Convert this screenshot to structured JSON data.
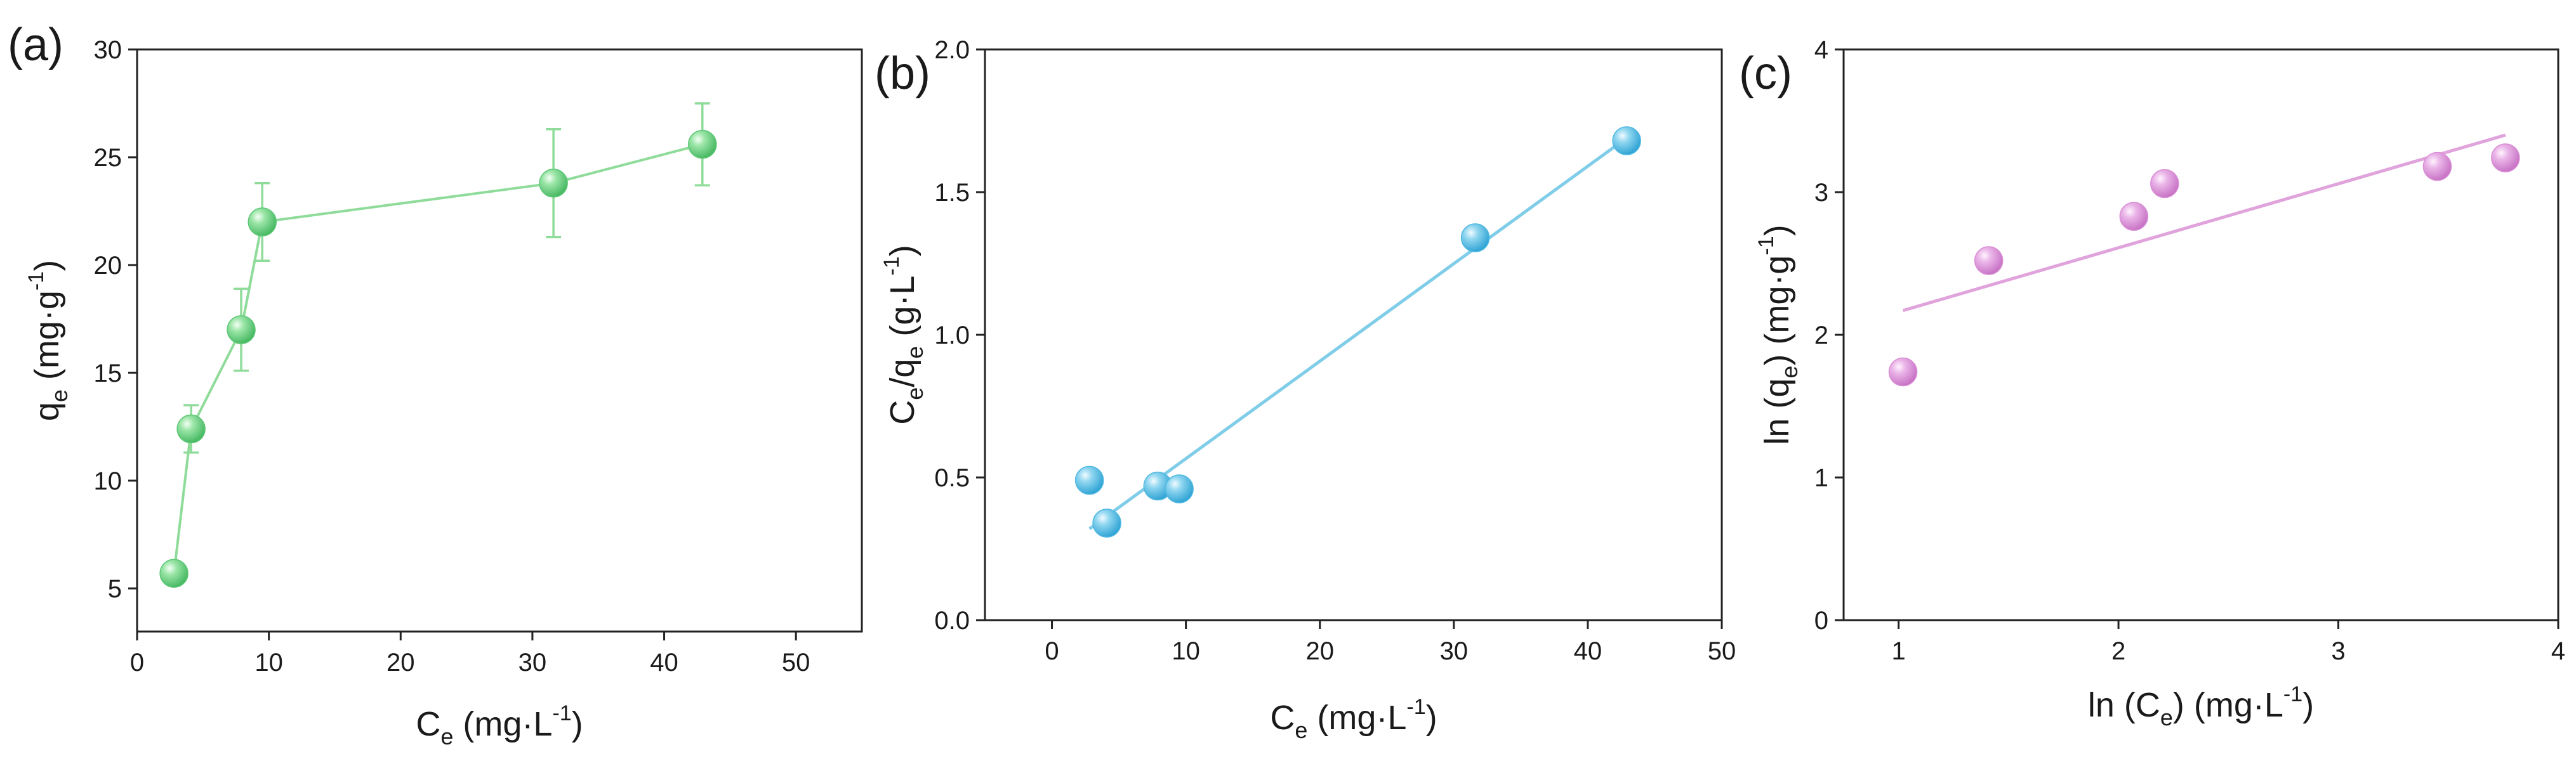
{
  "chart_data": [
    {
      "panel": "(a)",
      "type": "line",
      "xlabel": {
        "base": "C",
        "sub": "e",
        "unit_pre": " (mg·L",
        "unit_sup": "-1",
        "unit_post": ")"
      },
      "ylabel": {
        "base": "q",
        "sub": "e",
        "unit_pre": " (mg·g",
        "unit_sup": "-1",
        "unit_post": ")"
      },
      "xlim": [
        0,
        55
      ],
      "ylim": [
        3,
        30
      ],
      "xticks": [
        0,
        10,
        20,
        30,
        40,
        50
      ],
      "yticks": [
        5,
        10,
        15,
        20,
        25,
        30
      ],
      "color": "#8fdc9a",
      "marker_color": "#5fc777",
      "x": [
        2.8,
        4.1,
        7.9,
        9.5,
        31.6,
        42.9
      ],
      "y": [
        5.7,
        12.4,
        17.0,
        22.0,
        23.8,
        25.6
      ],
      "yerr": [
        0.4,
        1.1,
        1.9,
        1.8,
        2.5,
        1.9
      ]
    },
    {
      "panel": "(b)",
      "type": "scatter",
      "xlabel": {
        "base": "C",
        "sub": "e",
        "unit_pre": " (mg·L",
        "unit_sup": "-1",
        "unit_post": ")"
      },
      "ylabel": {
        "base": "C",
        "sub": "e",
        "mid": "/q",
        "sub2": "e",
        "unit_pre": " (g·L",
        "unit_sup": "-1",
        "unit_post": ")"
      },
      "xlim": [
        -5,
        50
      ],
      "ylim": [
        0,
        2.0
      ],
      "xticks": [
        0,
        10,
        20,
        30,
        40,
        50
      ],
      "yticks": [
        0.0,
        0.5,
        1.0,
        1.5,
        2.0
      ],
      "ytick_format": 1,
      "color": "#7fcde8",
      "marker_color": "#4fb8e2",
      "x": [
        2.8,
        4.1,
        7.9,
        9.5,
        31.6,
        42.9
      ],
      "y": [
        0.49,
        0.34,
        0.47,
        0.46,
        1.34,
        1.68
      ],
      "fit": {
        "x": [
          2.8,
          42.9
        ],
        "y": [
          0.32,
          1.69
        ]
      }
    },
    {
      "panel": "(c)",
      "type": "scatter",
      "xlabel": {
        "pre": "ln (",
        "base": "C",
        "sub": "e",
        "unit_pre": ") (mg·L",
        "unit_sup": "-1",
        "unit_post": ")"
      },
      "ylabel": {
        "pre": "ln (",
        "base": "q",
        "sub": "e",
        "unit_pre": ") (mg·g",
        "unit_sup": "-1",
        "unit_post": ")"
      },
      "xlim": [
        0.75,
        4.0
      ],
      "ylim": [
        0,
        4
      ],
      "xticks": [
        1,
        2,
        3,
        4
      ],
      "yticks": [
        0,
        1,
        2,
        3,
        4
      ],
      "color": "#e0a3dc",
      "marker_color": "#d98fd6",
      "x": [
        1.02,
        1.41,
        2.07,
        2.21,
        3.45,
        3.76
      ],
      "y": [
        1.74,
        2.52,
        2.83,
        3.06,
        3.18,
        3.24
      ],
      "fit": {
        "x": [
          1.02,
          3.76
        ],
        "y": [
          2.17,
          3.4
        ]
      }
    }
  ]
}
